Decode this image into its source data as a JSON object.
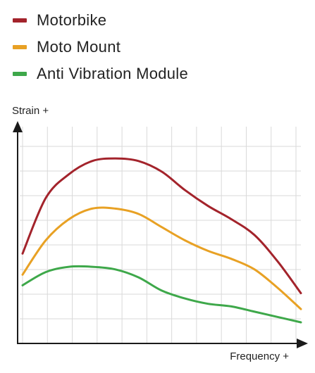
{
  "chart_data": {
    "type": "line",
    "title": "",
    "xlabel": "Frequency +",
    "ylabel": "Strain +",
    "x": [
      0,
      1,
      2,
      3,
      4,
      5,
      6,
      7,
      8,
      9,
      10,
      11,
      12
    ],
    "xlim": [
      0,
      12
    ],
    "ylim": [
      0,
      8.2
    ],
    "grid": true,
    "legend": "top-left",
    "series": [
      {
        "name": "Motorbike",
        "color": "#a3232b",
        "values": [
          3.4,
          5.5,
          6.4,
          6.9,
          7.0,
          6.9,
          6.5,
          5.8,
          5.2,
          4.7,
          4.1,
          3.1,
          1.9
        ]
      },
      {
        "name": "Moto Mount",
        "color": "#e8a124",
        "values": [
          2.6,
          3.9,
          4.7,
          5.1,
          5.1,
          4.9,
          4.4,
          3.9,
          3.5,
          3.2,
          2.8,
          2.1,
          1.3
        ]
      },
      {
        "name": "Anti Vibration Module",
        "color": "#3ea84a",
        "values": [
          2.2,
          2.7,
          2.9,
          2.9,
          2.8,
          2.5,
          2.0,
          1.7,
          1.5,
          1.4,
          1.2,
          1.0,
          0.8
        ]
      }
    ]
  }
}
